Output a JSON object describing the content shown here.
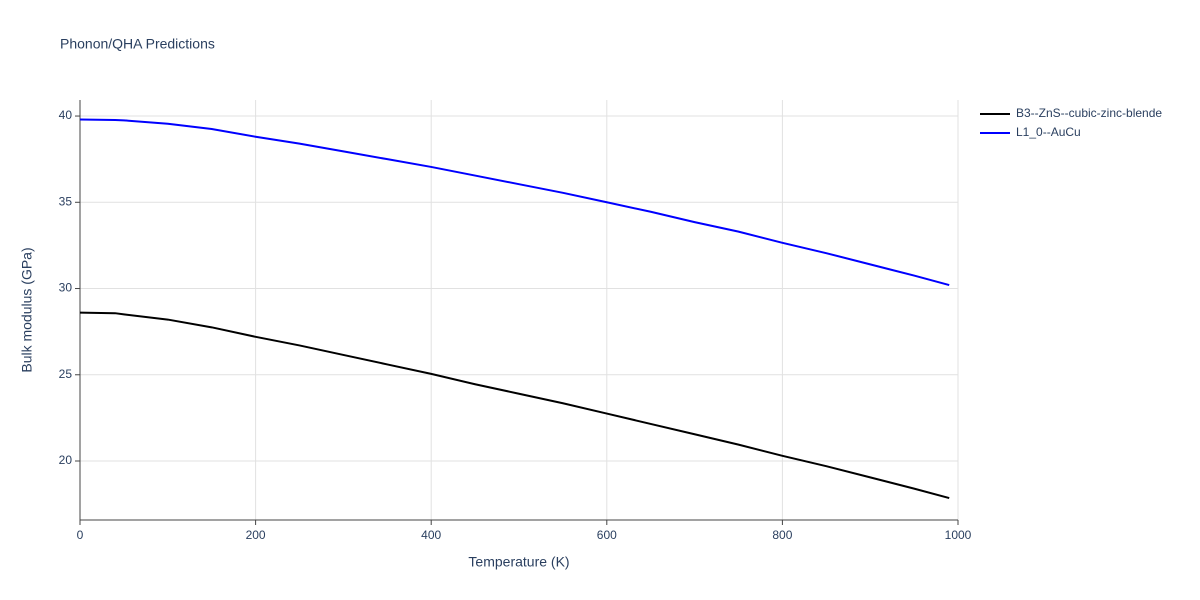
{
  "chart_data": {
    "type": "line",
    "title": "Phonon/QHA Predictions",
    "x_label": "Temperature (K)",
    "y_label": "Bulk modulus (GPa)",
    "x": [
      0,
      40,
      50,
      100,
      150,
      200,
      250,
      300,
      350,
      400,
      450,
      500,
      550,
      600,
      650,
      700,
      750,
      800,
      850,
      900,
      950,
      990
    ],
    "series": [
      {
        "name": "B3--ZnS--cubic-zinc-blende",
        "color": "#000000",
        "values": [
          28.6,
          28.57,
          28.5,
          28.2,
          27.75,
          27.2,
          26.7,
          26.15,
          25.6,
          25.05,
          24.45,
          23.9,
          23.35,
          22.75,
          22.15,
          21.55,
          20.95,
          20.3,
          19.7,
          19.05,
          18.4,
          17.85
        ]
      },
      {
        "name": "L1_0--AuCu",
        "color": "#0000ff",
        "values": [
          39.8,
          39.77,
          39.75,
          39.55,
          39.25,
          38.8,
          38.4,
          37.95,
          37.5,
          37.05,
          36.55,
          36.05,
          35.55,
          35.0,
          34.45,
          33.85,
          33.3,
          32.65,
          32.05,
          31.4,
          30.75,
          30.2
        ]
      }
    ],
    "xlim": [
      0,
      1000
    ],
    "xticks": [
      0,
      200,
      400,
      600,
      800,
      1000
    ],
    "ylim": [
      16.58,
      40.93
    ],
    "yticks": [
      20,
      25,
      30,
      35,
      40
    ],
    "grid": true,
    "legend": "top-right"
  }
}
